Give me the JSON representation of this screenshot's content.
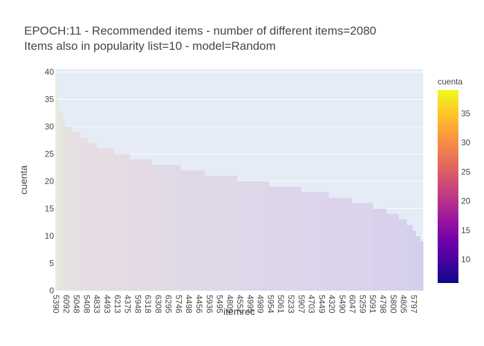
{
  "chart_data": {
    "type": "bar",
    "title_line1": "EPOCH:11 - Recommended items - number of different items=2080",
    "title_line2": "Items also in popularity list=10 - model=Random",
    "xlabel": "itemrec",
    "ylabel": "cuenta",
    "ylim": [
      0,
      40.5
    ],
    "yticks": [
      0,
      5,
      10,
      15,
      20,
      25,
      30,
      35,
      40
    ],
    "x_tick_labels": [
      "5390",
      "6092",
      "5048",
      "5408",
      "4833",
      "4493",
      "6213",
      "4375",
      "5948",
      "6318",
      "6308",
      "6295",
      "5746",
      "4498",
      "4456",
      "5936",
      "5495",
      "4809",
      "4552",
      "4995",
      "4989",
      "5954",
      "5061",
      "5233",
      "5907",
      "4703",
      "5449",
      "4320",
      "5490",
      "6047",
      "5259",
      "5091",
      "4798",
      "5800",
      "4805",
      "5797"
    ],
    "value_segments": [
      {
        "value": 39,
        "bar_count": 1
      },
      {
        "value": 35,
        "bar_count": 1
      },
      {
        "value": 33,
        "bar_count": 2
      },
      {
        "value": 32,
        "bar_count": 1
      },
      {
        "value": 31,
        "bar_count": 1
      },
      {
        "value": 30,
        "bar_count": 5
      },
      {
        "value": 29,
        "bar_count": 5
      },
      {
        "value": 28,
        "bar_count": 5
      },
      {
        "value": 27,
        "bar_count": 6
      },
      {
        "value": 26,
        "bar_count": 11
      },
      {
        "value": 25,
        "bar_count": 11
      },
      {
        "value": 24,
        "bar_count": 14
      },
      {
        "value": 23,
        "bar_count": 19
      },
      {
        "value": 22,
        "bar_count": 16
      },
      {
        "value": 21,
        "bar_count": 21
      },
      {
        "value": 20,
        "bar_count": 21
      },
      {
        "value": 19,
        "bar_count": 21
      },
      {
        "value": 18,
        "bar_count": 18
      },
      {
        "value": 17,
        "bar_count": 15
      },
      {
        "value": 16,
        "bar_count": 14
      },
      {
        "value": 15,
        "bar_count": 9
      },
      {
        "value": 14,
        "bar_count": 8
      },
      {
        "value": 13,
        "bar_count": 5
      },
      {
        "value": 12,
        "bar_count": 4
      },
      {
        "value": 11,
        "bar_count": 2
      },
      {
        "value": 10,
        "bar_count": 3
      },
      {
        "value": 9,
        "bar_count": 2
      }
    ],
    "colorbar": {
      "title": "cuenta",
      "range": [
        6,
        39
      ],
      "ticks": [
        10,
        15,
        20,
        25,
        30,
        35
      ],
      "colorscale": [
        "#0d0887",
        "#46039f",
        "#7201a8",
        "#9c179e",
        "#bd3786",
        "#d8576b",
        "#ed7953",
        "#fb9f3a",
        "#fdca26",
        "#f0f921"
      ]
    },
    "plot_background": "#e5ecf6",
    "grid": true,
    "legend": "none"
  }
}
